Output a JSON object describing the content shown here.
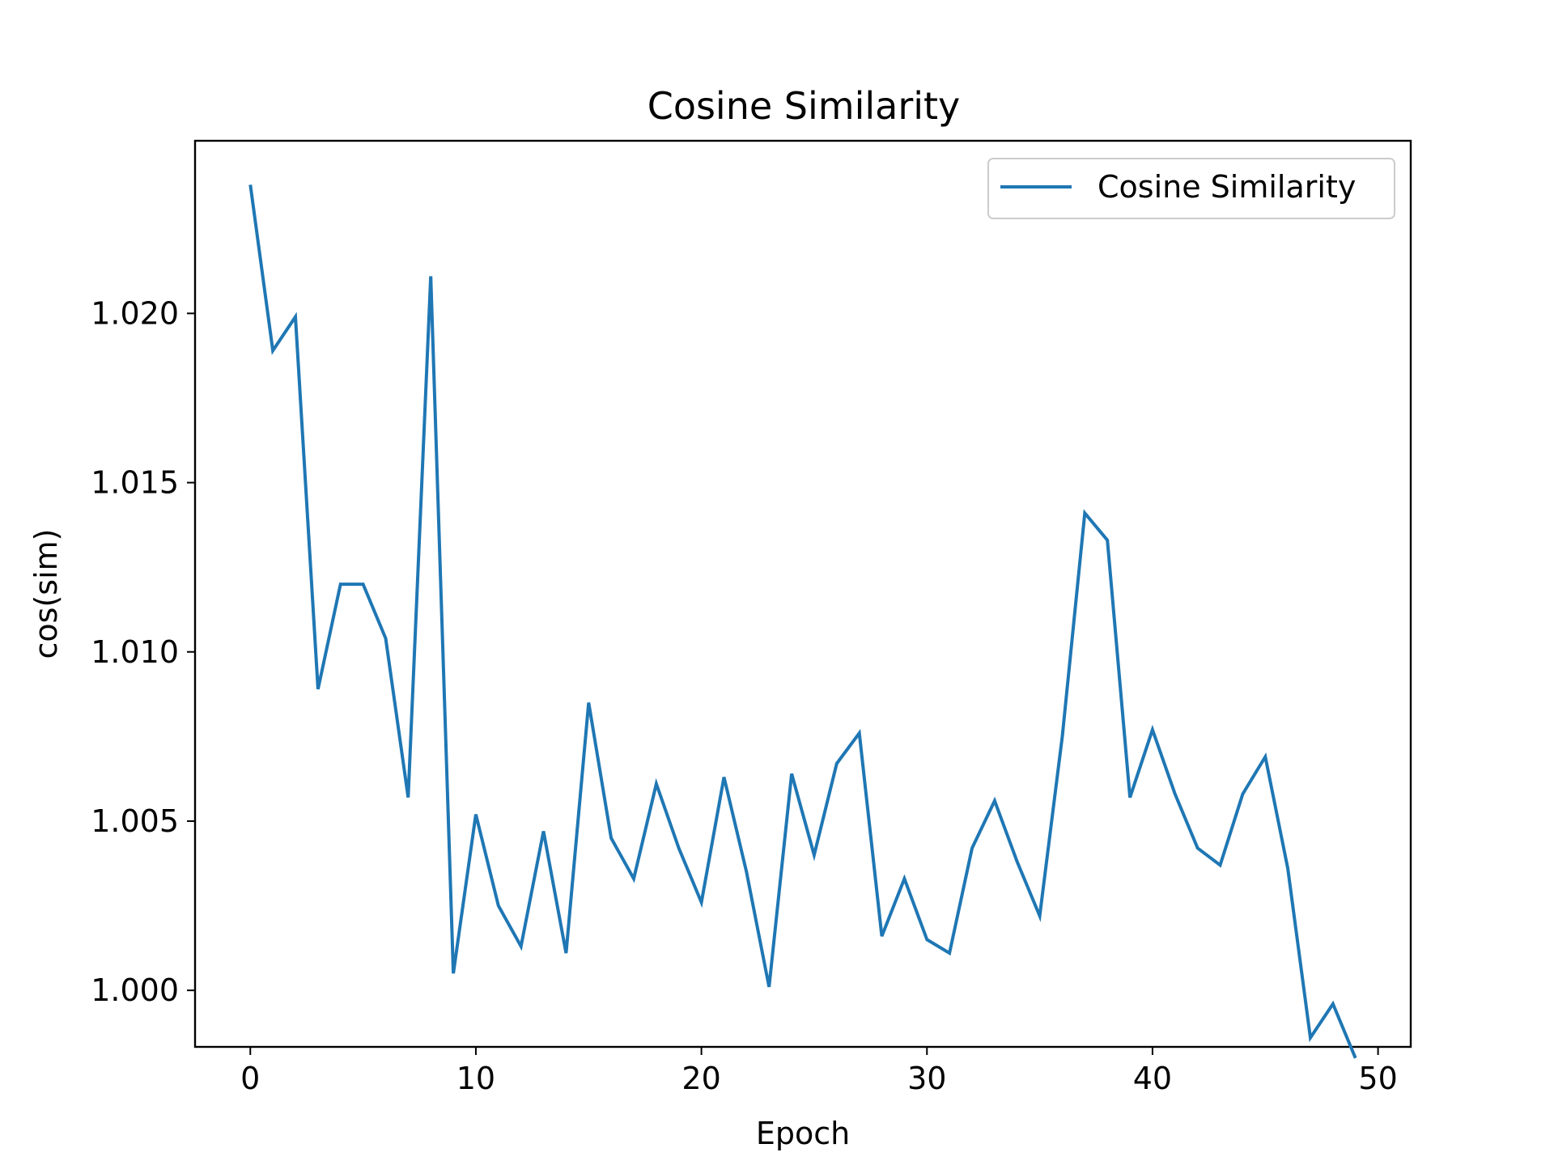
{
  "chart_data": {
    "type": "line",
    "title": "Cosine Similarity",
    "xlabel": "Epoch",
    "ylabel": "cos(sim)",
    "xlim": [
      -2.45,
      51.45
    ],
    "ylim": [
      0.99833,
      1.0251
    ],
    "xticks": [
      0,
      10,
      20,
      30,
      40,
      50
    ],
    "xtick_labels": [
      "0",
      "10",
      "20",
      "30",
      "40",
      "50"
    ],
    "yticks": [
      1.0,
      1.005,
      1.01,
      1.015,
      1.02
    ],
    "ytick_labels": [
      "1.000",
      "1.005",
      "1.010",
      "1.015",
      "1.020"
    ],
    "grid": false,
    "legend_position": "upper right",
    "series": [
      {
        "name": "Cosine Similarity",
        "color": "#1f77b4",
        "x": [
          0,
          1,
          2,
          3,
          4,
          5,
          6,
          7,
          8,
          9,
          10,
          11,
          12,
          13,
          14,
          15,
          16,
          17,
          18,
          19,
          20,
          21,
          22,
          23,
          24,
          25,
          26,
          27,
          28,
          29,
          30,
          31,
          32,
          33,
          34,
          35,
          36,
          37,
          38,
          39,
          40,
          41,
          42,
          43,
          44,
          45,
          46,
          47,
          48,
          49
        ],
        "values": [
          1.0238,
          1.0189,
          1.0199,
          1.0089,
          1.012,
          1.012,
          1.0104,
          1.0057,
          1.0211,
          1.0005,
          1.0052,
          1.0025,
          1.0013,
          1.0047,
          1.0011,
          1.0085,
          1.0045,
          1.0033,
          1.0061,
          1.0042,
          1.0026,
          1.0063,
          1.0035,
          1.0001,
          1.0064,
          1.004,
          1.0067,
          1.0076,
          1.0016,
          1.0033,
          1.0015,
          1.0011,
          1.0042,
          1.0056,
          1.0038,
          1.0022,
          1.0075,
          1.0141,
          1.0133,
          1.0057,
          1.0077,
          1.0058,
          1.0042,
          1.0037,
          1.0058,
          1.0069,
          1.0036,
          0.9986,
          0.9996,
          0.998
        ]
      }
    ]
  }
}
